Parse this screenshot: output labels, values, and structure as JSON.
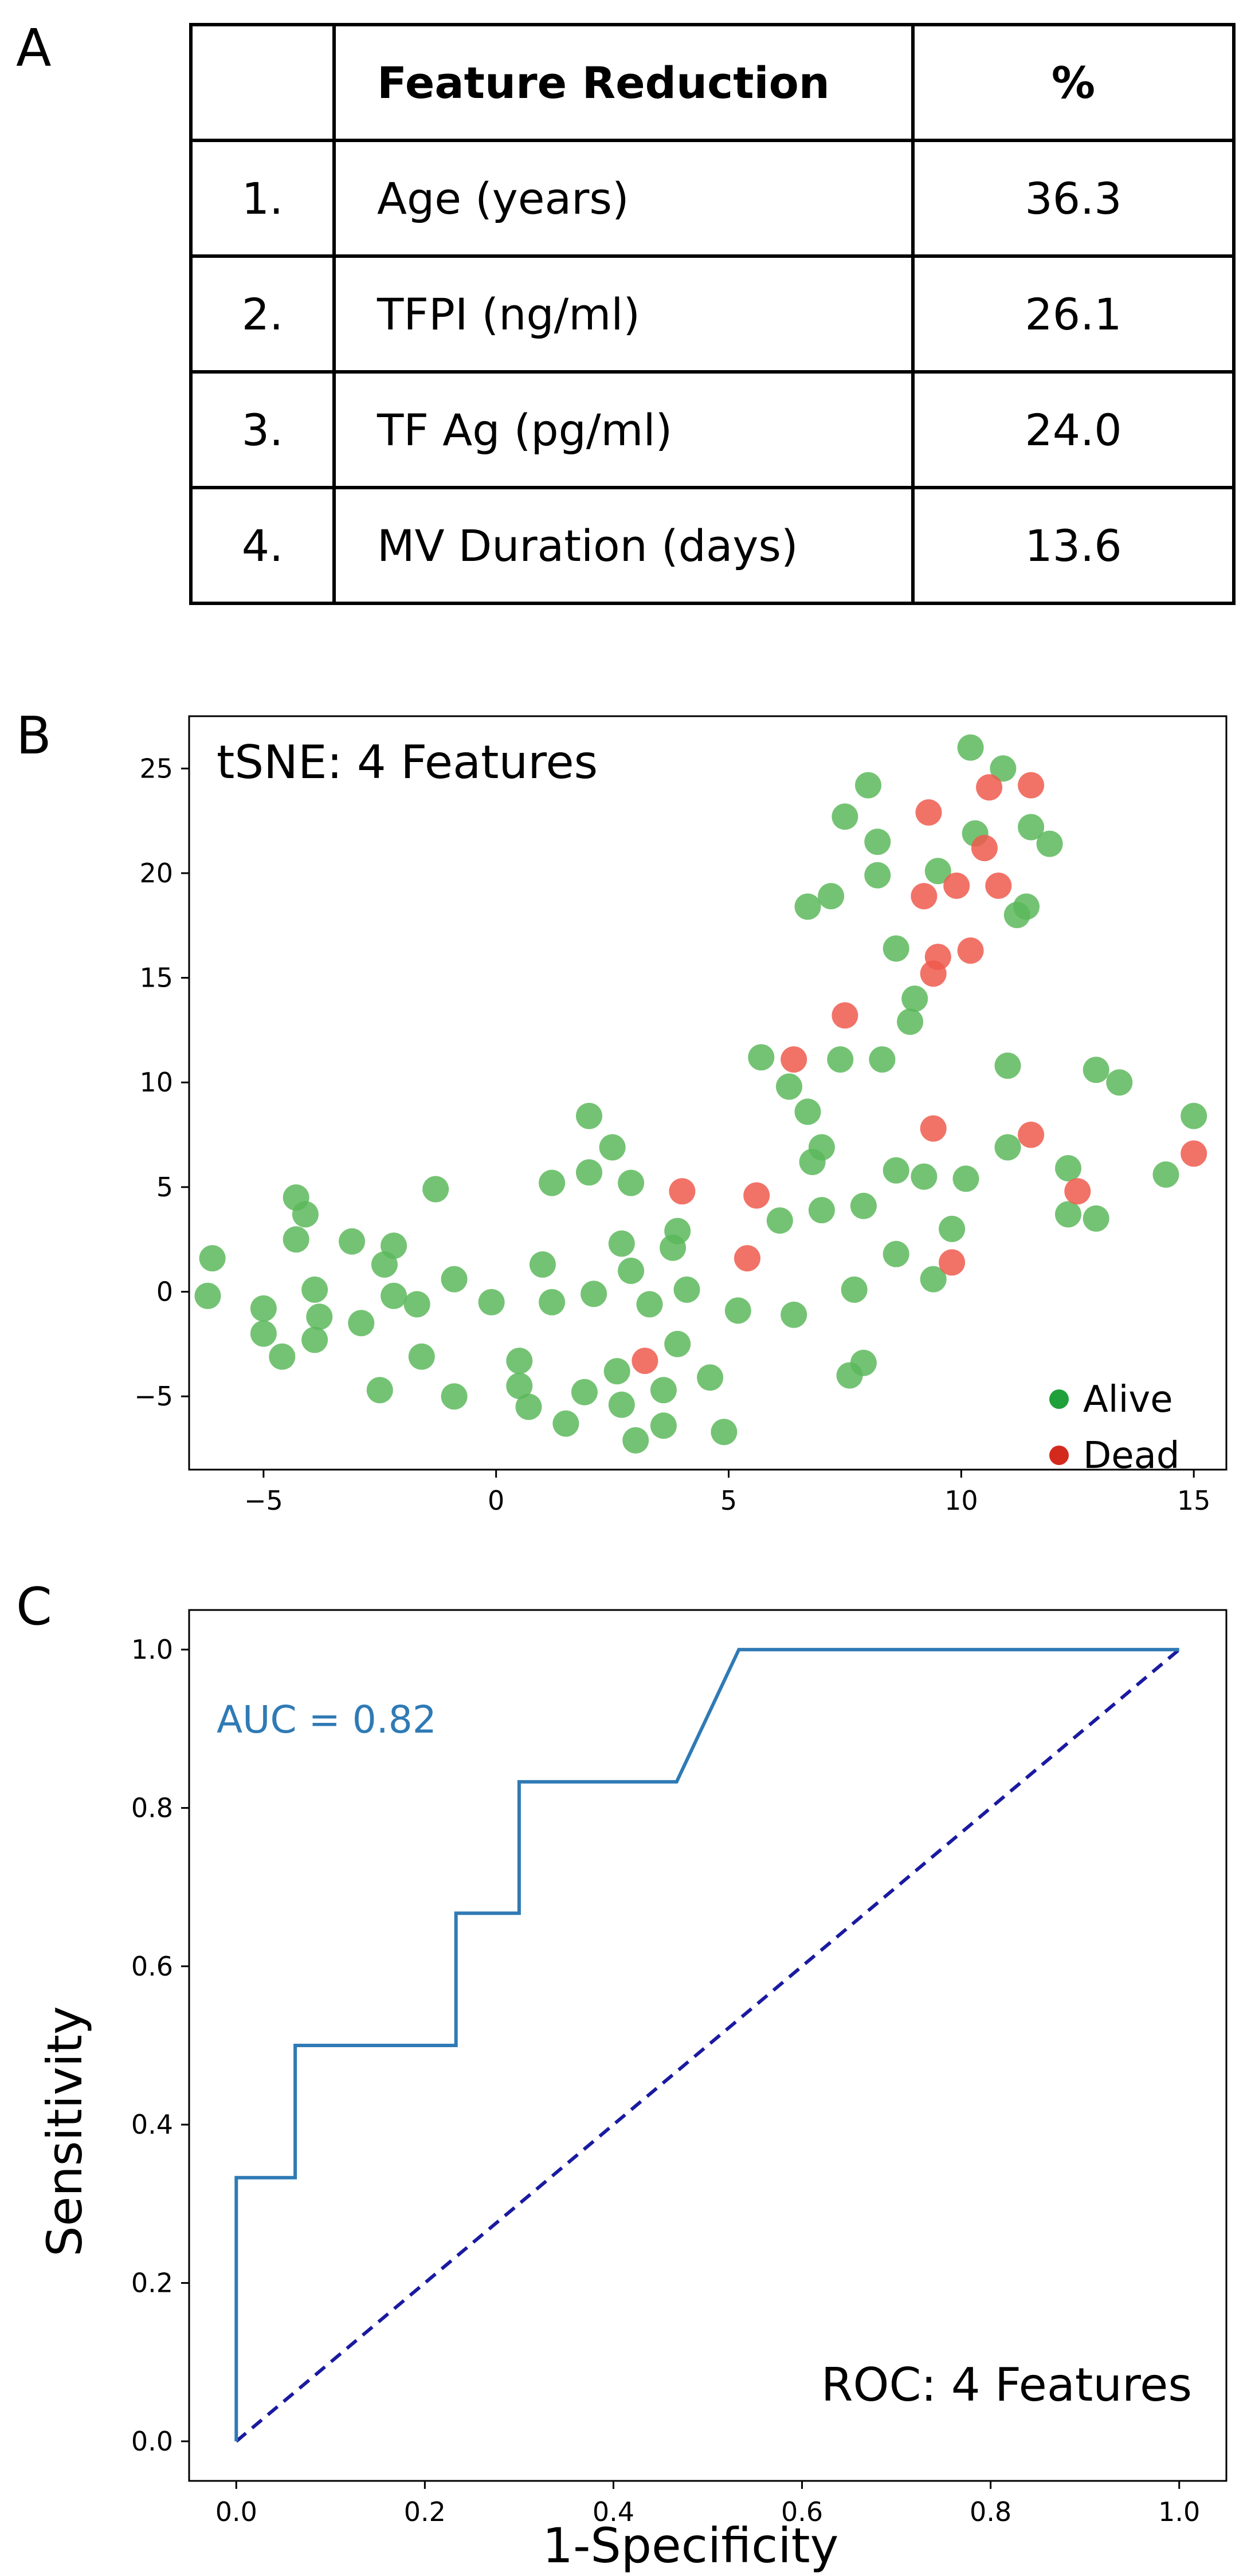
{
  "panels": {
    "a": "A",
    "b": "B",
    "c": "C"
  },
  "table": {
    "headers": [
      "",
      "Feature Reduction",
      "%"
    ],
    "rows": [
      {
        "num": "1.",
        "name": "Age (years)",
        "value": "36.3"
      },
      {
        "num": "2.",
        "name": "TFPI (ng/ml)",
        "value": "26.1"
      },
      {
        "num": "3.",
        "name": "TF Ag (pg/ml)",
        "value": "24.0"
      },
      {
        "num": "4.",
        "name": "MV Duration (days)",
        "value": "13.6"
      }
    ]
  },
  "chart_data": [
    {
      "type": "scatter",
      "title": "tSNE: 4 Features",
      "xlabel": "",
      "ylabel": "",
      "xlim": [
        -6.6,
        15.7
      ],
      "ylim": [
        -8.5,
        27.5
      ],
      "xticks": [
        -5,
        0,
        5,
        10,
        15
      ],
      "yticks": [
        -5,
        0,
        5,
        10,
        15,
        20,
        25
      ],
      "grid": false,
      "legend_position": "bottom-right",
      "colors": {
        "Alive": "#5cb85c",
        "Dead": "#ee5a4d"
      },
      "marker_colors": {
        "Alive": "#1fa03a",
        "Dead": "#d42a1e"
      },
      "series": [
        {
          "name": "Alive",
          "points": [
            [
              10.2,
              26.0
            ],
            [
              10.9,
              25.0
            ],
            [
              8.0,
              24.2
            ],
            [
              7.5,
              22.7
            ],
            [
              8.2,
              21.5
            ],
            [
              10.3,
              21.9
            ],
            [
              11.5,
              22.2
            ],
            [
              11.9,
              21.4
            ],
            [
              9.5,
              20.1
            ],
            [
              8.2,
              19.9
            ],
            [
              7.2,
              18.9
            ],
            [
              6.7,
              18.4
            ],
            [
              11.2,
              18.0
            ],
            [
              11.4,
              18.4
            ],
            [
              8.6,
              16.4
            ],
            [
              9.0,
              14.0
            ],
            [
              8.9,
              12.9
            ],
            [
              5.7,
              11.2
            ],
            [
              7.4,
              11.1
            ],
            [
              8.3,
              11.1
            ],
            [
              11.0,
              10.8
            ],
            [
              12.9,
              10.6
            ],
            [
              13.4,
              10.0
            ],
            [
              15.0,
              8.4
            ],
            [
              6.3,
              9.8
            ],
            [
              6.7,
              8.6
            ],
            [
              7.0,
              6.9
            ],
            [
              6.8,
              6.2
            ],
            [
              8.6,
              5.8
            ],
            [
              9.2,
              5.5
            ],
            [
              10.1,
              5.4
            ],
            [
              11.0,
              6.9
            ],
            [
              12.3,
              5.9
            ],
            [
              14.4,
              5.6
            ],
            [
              12.3,
              3.7
            ],
            [
              12.9,
              3.5
            ],
            [
              7.0,
              3.9
            ],
            [
              7.9,
              4.1
            ],
            [
              6.1,
              3.4
            ],
            [
              9.8,
              3.0
            ],
            [
              8.6,
              1.8
            ],
            [
              7.7,
              0.1
            ],
            [
              9.4,
              0.6
            ],
            [
              6.4,
              -1.1
            ],
            [
              5.2,
              -0.9
            ],
            [
              7.6,
              -4.0
            ],
            [
              7.9,
              -3.4
            ],
            [
              4.9,
              -6.7
            ],
            [
              4.6,
              -4.1
            ],
            [
              4.1,
              0.1
            ],
            [
              3.9,
              2.9
            ],
            [
              3.8,
              2.1
            ],
            [
              3.9,
              -2.5
            ],
            [
              3.6,
              -4.7
            ],
            [
              3.3,
              -0.6
            ],
            [
              3.0,
              -7.1
            ],
            [
              3.6,
              -6.4
            ],
            [
              2.0,
              8.4
            ],
            [
              2.5,
              6.9
            ],
            [
              2.0,
              5.7
            ],
            [
              1.2,
              5.2
            ],
            [
              2.9,
              5.2
            ],
            [
              2.7,
              2.3
            ],
            [
              2.9,
              1.0
            ],
            [
              1.0,
              1.3
            ],
            [
              2.1,
              -0.1
            ],
            [
              1.2,
              -0.5
            ],
            [
              -0.1,
              -0.5
            ],
            [
              -0.9,
              0.6
            ],
            [
              2.6,
              -3.8
            ],
            [
              1.9,
              -4.8
            ],
            [
              0.5,
              -3.3
            ],
            [
              0.5,
              -4.5
            ],
            [
              0.7,
              -5.5
            ],
            [
              1.5,
              -6.3
            ],
            [
              2.7,
              -5.4
            ],
            [
              -1.3,
              4.9
            ],
            [
              -2.2,
              2.2
            ],
            [
              -2.4,
              1.3
            ],
            [
              -3.1,
              2.4
            ],
            [
              -2.2,
              -0.2
            ],
            [
              -1.7,
              -0.6
            ],
            [
              -2.9,
              -1.5
            ],
            [
              -1.6,
              -3.1
            ],
            [
              -0.9,
              -5.0
            ],
            [
              -2.5,
              -4.7
            ],
            [
              -4.3,
              4.5
            ],
            [
              -4.1,
              3.7
            ],
            [
              -4.3,
              2.5
            ],
            [
              -3.9,
              0.1
            ],
            [
              -3.8,
              -1.2
            ],
            [
              -3.9,
              -2.3
            ],
            [
              -4.6,
              -3.1
            ],
            [
              -5.0,
              -0.8
            ],
            [
              -5.0,
              -2.0
            ],
            [
              -6.1,
              1.6
            ],
            [
              -6.2,
              -0.2
            ]
          ]
        },
        {
          "name": "Dead",
          "points": [
            [
              10.6,
              24.1
            ],
            [
              11.5,
              24.2
            ],
            [
              9.3,
              22.9
            ],
            [
              10.5,
              21.2
            ],
            [
              9.9,
              19.4
            ],
            [
              9.2,
              18.9
            ],
            [
              10.8,
              19.4
            ],
            [
              9.5,
              16.0
            ],
            [
              10.2,
              16.3
            ],
            [
              9.4,
              15.2
            ],
            [
              7.5,
              13.2
            ],
            [
              6.4,
              11.1
            ],
            [
              9.4,
              7.8
            ],
            [
              11.5,
              7.5
            ],
            [
              15.0,
              6.6
            ],
            [
              12.5,
              4.8
            ],
            [
              5.6,
              4.6
            ],
            [
              4.0,
              4.8
            ],
            [
              5.4,
              1.6
            ],
            [
              9.8,
              1.4
            ],
            [
              3.2,
              -3.3
            ]
          ]
        }
      ]
    },
    {
      "type": "line",
      "title": "ROC: 4 Features",
      "annotation": "AUC = 0.82",
      "xlabel": "1-Specificity",
      "ylabel": "Sensitivity",
      "xlim": [
        -0.05,
        1.05
      ],
      "ylim": [
        -0.05,
        1.05
      ],
      "xticks": [
        "0.0",
        "0.2",
        "0.4",
        "0.6",
        "0.8",
        "1.0"
      ],
      "yticks": [
        "0.0",
        "0.2",
        "0.4",
        "0.6",
        "0.8",
        "1.0"
      ],
      "grid": false,
      "colors": {
        "roc": "#2f7ab5",
        "chance": "#1a1aa0"
      },
      "series": [
        {
          "name": "ROC",
          "x": [
            0,
            0,
            0.0625,
            0.0625,
            0.233,
            0.233,
            0.3,
            0.3,
            0.467,
            0.533,
            1.0
          ],
          "y": [
            0,
            0.333,
            0.333,
            0.5,
            0.5,
            0.667,
            0.667,
            0.833,
            0.833,
            1.0,
            1.0
          ]
        },
        {
          "name": "Chance",
          "x": [
            0,
            1
          ],
          "y": [
            0,
            1
          ]
        }
      ]
    }
  ]
}
